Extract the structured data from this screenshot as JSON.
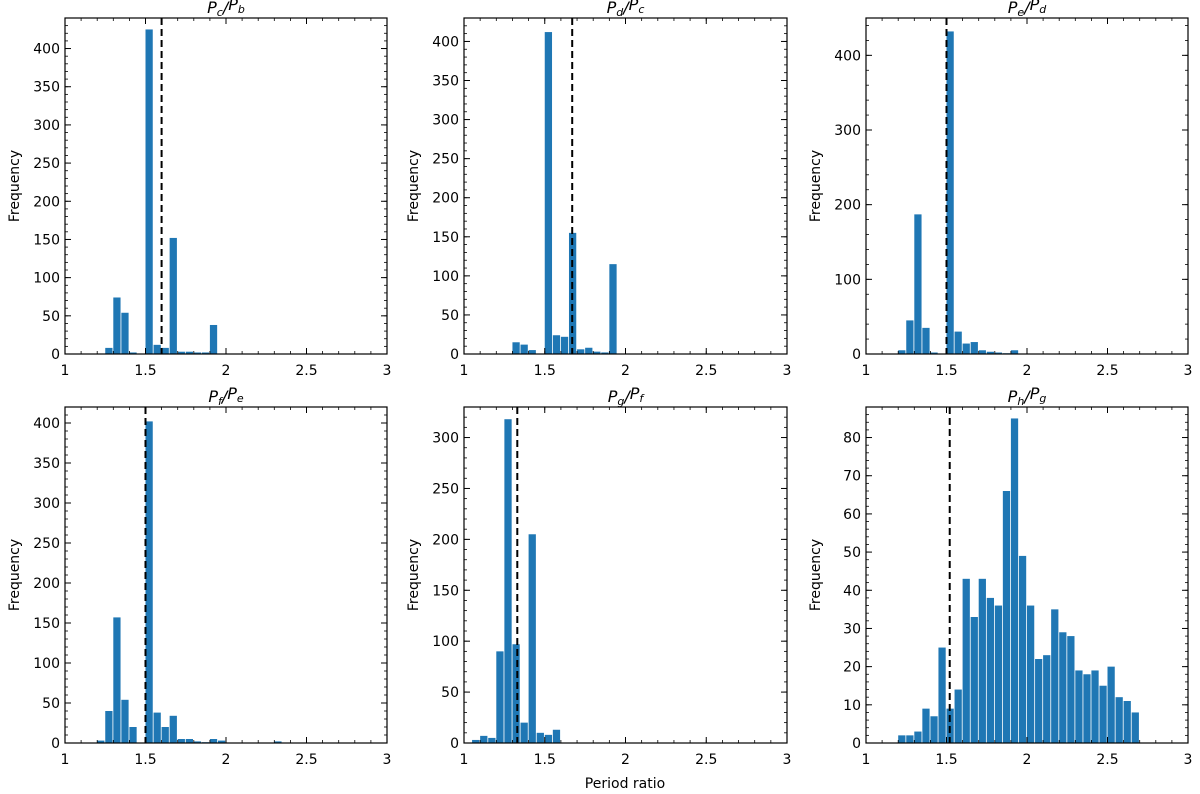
{
  "figure": {
    "xlabel": "Period ratio",
    "bar_color": "#1f77b4"
  },
  "chart_data": [
    {
      "type": "bar",
      "name": "Pc-Pb",
      "title": {
        "num": "P",
        "num_sub": "c",
        "den": "P",
        "den_sub": "b"
      },
      "ylabel": "Frequency",
      "xlabel": "",
      "xlim": [
        1,
        3
      ],
      "ylim": [
        0,
        440
      ],
      "xticks": [
        1,
        1.5,
        2,
        2.5,
        3
      ],
      "xtick_labels": [
        "1",
        "1.5",
        "2",
        "2.5",
        "3"
      ],
      "yticks": [
        0,
        50,
        100,
        150,
        200,
        250,
        300,
        350,
        400
      ],
      "bin_start": 1.0,
      "bin_width": 0.05,
      "values": [
        0,
        0,
        0,
        0,
        0,
        8,
        74,
        54,
        2,
        0,
        425,
        12,
        8,
        152,
        3,
        3,
        2,
        2,
        38,
        0,
        0,
        0,
        0,
        0,
        0,
        0,
        0,
        0,
        0,
        0,
        0,
        0,
        0,
        0,
        0,
        0,
        0,
        0,
        0,
        0
      ],
      "ref_line": 1.6
    },
    {
      "type": "bar",
      "name": "Pd-Pc",
      "title": {
        "num": "P",
        "num_sub": "d",
        "den": "P",
        "den_sub": "c"
      },
      "ylabel": "Frequency",
      "xlabel": "",
      "xlim": [
        1,
        3
      ],
      "ylim": [
        0,
        430
      ],
      "xticks": [
        1,
        1.5,
        2,
        2.5,
        3
      ],
      "xtick_labels": [
        "1",
        "1.5",
        "2",
        "2.5",
        "3"
      ],
      "yticks": [
        0,
        50,
        100,
        150,
        200,
        250,
        300,
        350,
        400
      ],
      "bin_start": 1.0,
      "bin_width": 0.05,
      "values": [
        0,
        0,
        0,
        0,
        0,
        0,
        15,
        12,
        5,
        0,
        412,
        24,
        22,
        155,
        6,
        8,
        3,
        2,
        115,
        0,
        0,
        0,
        0,
        0,
        0,
        0,
        0,
        0,
        0,
        0,
        0,
        0,
        0,
        0,
        0,
        0,
        0,
        0,
        0,
        0
      ],
      "ref_line": 1.67
    },
    {
      "type": "bar",
      "name": "Pe-Pd",
      "title": {
        "num": "P",
        "num_sub": "e",
        "den": "P",
        "den_sub": "d"
      },
      "ylabel": "Frequency",
      "xlabel": "",
      "xlim": [
        1,
        3
      ],
      "ylim": [
        0,
        450
      ],
      "xticks": [
        1,
        1.5,
        2,
        2.5,
        3
      ],
      "xtick_labels": [
        "1",
        "1.5",
        "2",
        "2.5",
        "3"
      ],
      "yticks": [
        0,
        100,
        200,
        300,
        400
      ],
      "bin_start": 1.0,
      "bin_width": 0.05,
      "values": [
        0,
        0,
        0,
        0,
        5,
        45,
        187,
        35,
        2,
        0,
        432,
        30,
        14,
        16,
        5,
        3,
        2,
        1,
        5,
        0,
        0,
        0,
        0,
        0,
        0,
        0,
        0,
        0,
        0,
        0,
        0,
        0,
        0,
        0,
        0,
        0,
        0,
        0,
        0,
        0
      ],
      "ref_line": 1.5
    },
    {
      "type": "bar",
      "name": "Pf-Pe",
      "title": {
        "num": "P",
        "num_sub": "f",
        "den": "P",
        "den_sub": "e"
      },
      "ylabel": "Frequency",
      "xlabel": "",
      "xlim": [
        1,
        3
      ],
      "ylim": [
        0,
        420
      ],
      "xticks": [
        1,
        1.5,
        2,
        2.5,
        3
      ],
      "xtick_labels": [
        "1",
        "1.5",
        "2",
        "2.5",
        "3"
      ],
      "yticks": [
        0,
        50,
        100,
        150,
        200,
        250,
        300,
        350,
        400
      ],
      "bin_start": 1.0,
      "bin_width": 0.05,
      "values": [
        0,
        0,
        0,
        0,
        3,
        40,
        157,
        54,
        20,
        0,
        402,
        38,
        20,
        34,
        5,
        5,
        2,
        1,
        5,
        3,
        0,
        0,
        0,
        0,
        0,
        0,
        2,
        0,
        0,
        0,
        0,
        0,
        0,
        0,
        0,
        0,
        0,
        0,
        0,
        0
      ],
      "ref_line": 1.5
    },
    {
      "type": "bar",
      "name": "Pg-Pf",
      "title": {
        "num": "P",
        "num_sub": "g",
        "den": "P",
        "den_sub": "f"
      },
      "ylabel": "Frequency",
      "xlabel": "Period ratio",
      "xlim": [
        1,
        3
      ],
      "ylim": [
        0,
        330
      ],
      "xticks": [
        1,
        1.5,
        2,
        2.5,
        3
      ],
      "xtick_labels": [
        "1",
        "1.5",
        "2",
        "2.5",
        "3"
      ],
      "yticks": [
        0,
        50,
        100,
        150,
        200,
        250,
        300
      ],
      "bin_start": 1.0,
      "bin_width": 0.05,
      "values": [
        0,
        3,
        7,
        5,
        90,
        318,
        97,
        20,
        205,
        10,
        8,
        13,
        0,
        0,
        0,
        0,
        0,
        0,
        0,
        0,
        0,
        0,
        0,
        0,
        0,
        0,
        0,
        0,
        0,
        0,
        0,
        0,
        0,
        0,
        0,
        0,
        0,
        0,
        0,
        0
      ],
      "ref_line": 1.33
    },
    {
      "type": "bar",
      "name": "Ph-Pg",
      "title": {
        "num": "P",
        "num_sub": "h",
        "den": "P",
        "den_sub": "g"
      },
      "ylabel": "Frequency",
      "xlabel": "",
      "xlim": [
        1,
        3
      ],
      "ylim": [
        0,
        88
      ],
      "xticks": [
        1,
        1.5,
        2,
        2.5,
        3
      ],
      "xtick_labels": [
        "1",
        "1.5",
        "2",
        "2.5",
        "3"
      ],
      "yticks": [
        0,
        10,
        20,
        30,
        40,
        50,
        60,
        70,
        80
      ],
      "bin_start": 1.2,
      "bin_width": 0.05,
      "values": [
        2,
        2,
        3,
        9,
        7,
        25,
        9,
        14,
        43,
        33,
        43,
        38,
        36,
        66,
        85,
        49,
        36,
        22,
        23,
        35,
        29,
        28,
        19,
        18,
        19,
        15,
        20,
        12,
        11,
        8
      ],
      "ref_line": 1.52
    }
  ]
}
